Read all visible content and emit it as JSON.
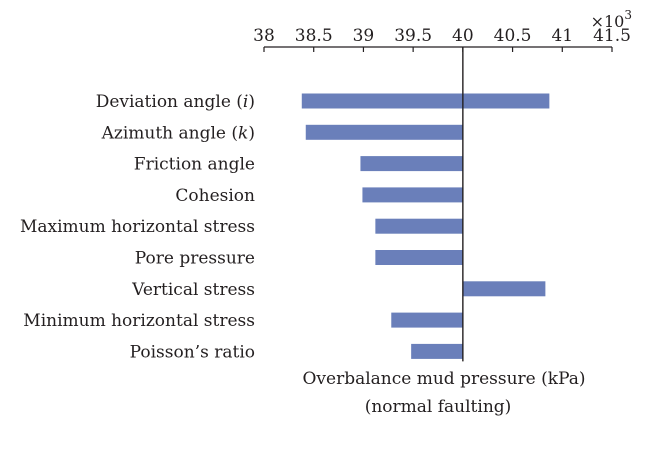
{
  "chart_data": {
    "type": "bar",
    "orientation": "horizontal",
    "title": "",
    "xlabel": "Overbalance mud pressure (kPa)",
    "xlabel_sub": "(normal faulting)",
    "ylabel": "",
    "axis_multiplier": {
      "base": "×10",
      "exponent": "3"
    },
    "x_axis_position": "top",
    "xlim": [
      38,
      41.5
    ],
    "baseline": 40,
    "xticks": [
      38,
      38.5,
      39,
      39.5,
      40,
      40.5,
      41,
      41.5
    ],
    "xtick_labels": [
      "38",
      "38.5",
      "39",
      "39.5",
      "40",
      "40.5",
      "41",
      "41.5"
    ],
    "grid": false,
    "legend": "none",
    "bar_color": "#6a7fba",
    "categories": [
      {
        "label_parts": [
          {
            "text": "Deviation angle ("
          },
          {
            "text": "i",
            "italic": true
          },
          {
            "text": ")"
          }
        ],
        "low": 38.38,
        "high": 40.87
      },
      {
        "label_parts": [
          {
            "text": "Azimuth angle ("
          },
          {
            "text": "k",
            "italic": true
          },
          {
            "text": ")"
          }
        ],
        "low": 38.42,
        "high": 40.0
      },
      {
        "label_parts": [
          {
            "text": "Friction angle"
          }
        ],
        "low": 38.97,
        "high": 40.0
      },
      {
        "label_parts": [
          {
            "text": "Cohesion"
          }
        ],
        "low": 38.99,
        "high": 40.0
      },
      {
        "label_parts": [
          {
            "text": "Maximum horizontal stress"
          }
        ],
        "low": 39.12,
        "high": 40.0
      },
      {
        "label_parts": [
          {
            "text": "Pore pressure"
          }
        ],
        "low": 39.12,
        "high": 40.0
      },
      {
        "label_parts": [
          {
            "text": "Vertical stress"
          }
        ],
        "low": 40.0,
        "high": 40.83
      },
      {
        "label_parts": [
          {
            "text": "Minimum horizontal stress"
          }
        ],
        "low": 39.28,
        "high": 40.0
      },
      {
        "label_parts": [
          {
            "text": "Poisson’s ratio"
          }
        ],
        "low": 39.48,
        "high": 40.0
      }
    ]
  }
}
